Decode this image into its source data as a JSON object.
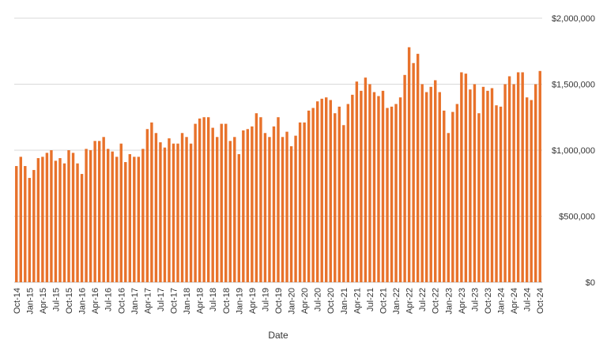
{
  "colors": {
    "bar": "#E8722B",
    "grid": "#d9d9d9",
    "axis": "#bfbfbf",
    "text": "#333333"
  },
  "chart_data": {
    "type": "bar",
    "title": "",
    "xlabel": "Date",
    "ylabel": "",
    "ylim": [
      0,
      2000000
    ],
    "y_ticks": [
      0,
      500000,
      1000000,
      1500000,
      2000000
    ],
    "y_tick_labels": [
      "$0",
      "$500,000",
      "$1,000,000",
      "$1,500,000",
      "$2,000,000"
    ],
    "y_axis_side": "right",
    "grid": true,
    "legend": "none",
    "x_tick_labels": [
      "Oct-14",
      "Jan-15",
      "Apr-15",
      "Jul-15",
      "Oct-15",
      "Jan-16",
      "Apr-16",
      "Jul-16",
      "Oct-16",
      "Jan-17",
      "Apr-17",
      "Jul-17",
      "Oct-17",
      "Jan-18",
      "Apr-18",
      "Jul-18",
      "Oct-18",
      "Jan-19",
      "Apr-19",
      "Jul-19",
      "Oct-19",
      "Jan-20",
      "Apr-20",
      "Jul-20",
      "Oct-20",
      "Jan-21",
      "Apr-21",
      "Jul-21",
      "Oct-21",
      "Jan-22",
      "Apr-22",
      "Jul-22",
      "Oct-22",
      "Jan-23",
      "Apr-23",
      "Jul-23",
      "Oct-23",
      "Jan-24",
      "Apr-24",
      "Jul-24",
      "Oct-24"
    ],
    "categories": [
      "Oct-14",
      "Nov-14",
      "Dec-14",
      "Jan-15",
      "Feb-15",
      "Mar-15",
      "Apr-15",
      "May-15",
      "Jun-15",
      "Jul-15",
      "Aug-15",
      "Sep-15",
      "Oct-15",
      "Nov-15",
      "Dec-15",
      "Jan-16",
      "Feb-16",
      "Mar-16",
      "Apr-16",
      "May-16",
      "Jun-16",
      "Jul-16",
      "Aug-16",
      "Sep-16",
      "Oct-16",
      "Nov-16",
      "Dec-16",
      "Jan-17",
      "Feb-17",
      "Mar-17",
      "Apr-17",
      "May-17",
      "Jun-17",
      "Jul-17",
      "Aug-17",
      "Sep-17",
      "Oct-17",
      "Nov-17",
      "Dec-17",
      "Jan-18",
      "Feb-18",
      "Mar-18",
      "Apr-18",
      "May-18",
      "Jun-18",
      "Jul-18",
      "Aug-18",
      "Sep-18",
      "Oct-18",
      "Nov-18",
      "Dec-18",
      "Jan-19",
      "Feb-19",
      "Mar-19",
      "Apr-19",
      "May-19",
      "Jun-19",
      "Jul-19",
      "Aug-19",
      "Sep-19",
      "Oct-19",
      "Nov-19",
      "Dec-19",
      "Jan-20",
      "Feb-20",
      "Mar-20",
      "Apr-20",
      "May-20",
      "Jun-20",
      "Jul-20",
      "Aug-20",
      "Sep-20",
      "Oct-20",
      "Nov-20",
      "Dec-20",
      "Jan-21",
      "Feb-21",
      "Mar-21",
      "Apr-21",
      "May-21",
      "Jun-21",
      "Jul-21",
      "Aug-21",
      "Sep-21",
      "Oct-21",
      "Nov-21",
      "Dec-21",
      "Jan-22",
      "Feb-22",
      "Mar-22",
      "Apr-22",
      "May-22",
      "Jun-22",
      "Jul-22",
      "Aug-22",
      "Sep-22",
      "Oct-22",
      "Nov-22",
      "Dec-22",
      "Jan-23",
      "Feb-23",
      "Mar-23",
      "Apr-23",
      "May-23",
      "Jun-23",
      "Jul-23",
      "Aug-23",
      "Sep-23",
      "Oct-23",
      "Nov-23",
      "Dec-23",
      "Jan-24",
      "Feb-24",
      "Mar-24",
      "Apr-24",
      "May-24",
      "Jun-24",
      "Jul-24",
      "Aug-24",
      "Sep-24",
      "Oct-24"
    ],
    "values": [
      880000,
      950000,
      880000,
      790000,
      850000,
      940000,
      950000,
      980000,
      1000000,
      920000,
      940000,
      900000,
      1000000,
      980000,
      900000,
      820000,
      1010000,
      1000000,
      1070000,
      1070000,
      1100000,
      1010000,
      990000,
      950000,
      1050000,
      910000,
      970000,
      950000,
      950000,
      1010000,
      1160000,
      1210000,
      1130000,
      1060000,
      1020000,
      1090000,
      1050000,
      1050000,
      1130000,
      1100000,
      1050000,
      1200000,
      1240000,
      1250000,
      1250000,
      1170000,
      1100000,
      1200000,
      1200000,
      1070000,
      1100000,
      970000,
      1150000,
      1160000,
      1180000,
      1280000,
      1250000,
      1130000,
      1100000,
      1180000,
      1250000,
      1100000,
      1140000,
      1030000,
      1110000,
      1210000,
      1210000,
      1300000,
      1320000,
      1370000,
      1390000,
      1400000,
      1380000,
      1280000,
      1330000,
      1190000,
      1350000,
      1420000,
      1520000,
      1450000,
      1550000,
      1500000,
      1440000,
      1410000,
      1450000,
      1320000,
      1330000,
      1350000,
      1400000,
      1570000,
      1780000,
      1660000,
      1730000,
      1500000,
      1440000,
      1480000,
      1530000,
      1440000,
      1300000,
      1130000,
      1290000,
      1350000,
      1590000,
      1580000,
      1460000,
      1500000,
      1280000,
      1480000,
      1450000,
      1470000,
      1340000,
      1330000,
      1500000,
      1560000,
      1500000,
      1590000,
      1590000,
      1400000,
      1380000,
      1500000,
      1600000
    ]
  }
}
